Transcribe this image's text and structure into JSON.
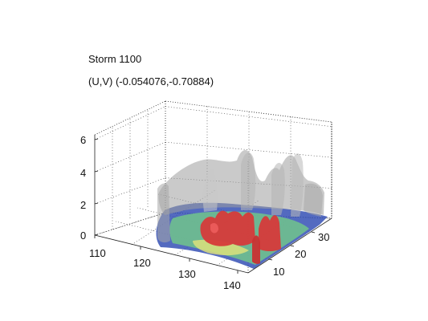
{
  "chart_data": {
    "type": "3d-isosurface",
    "title": "Storm 1100",
    "subtitle": "(U,V) (-0.054076,-0.70884)",
    "z_ticks": [
      "0",
      "2",
      "4",
      "6"
    ],
    "x_ticks": [
      "110",
      "120",
      "130",
      "140"
    ],
    "y_ticks": [
      "10",
      "20",
      "30"
    ],
    "xlim": [
      108,
      142
    ],
    "ylim": [
      2,
      34
    ],
    "zlim": [
      0,
      6.5
    ],
    "grid": true,
    "surfaces": [
      {
        "color": "#9e9e9e",
        "opacity": 0.6
      },
      {
        "color": "#d63a3a",
        "opacity": 0.95
      },
      {
        "color": "#5fb38a",
        "opacity": 0.85
      },
      {
        "color": "#3550b5",
        "opacity": 0.85
      }
    ]
  }
}
